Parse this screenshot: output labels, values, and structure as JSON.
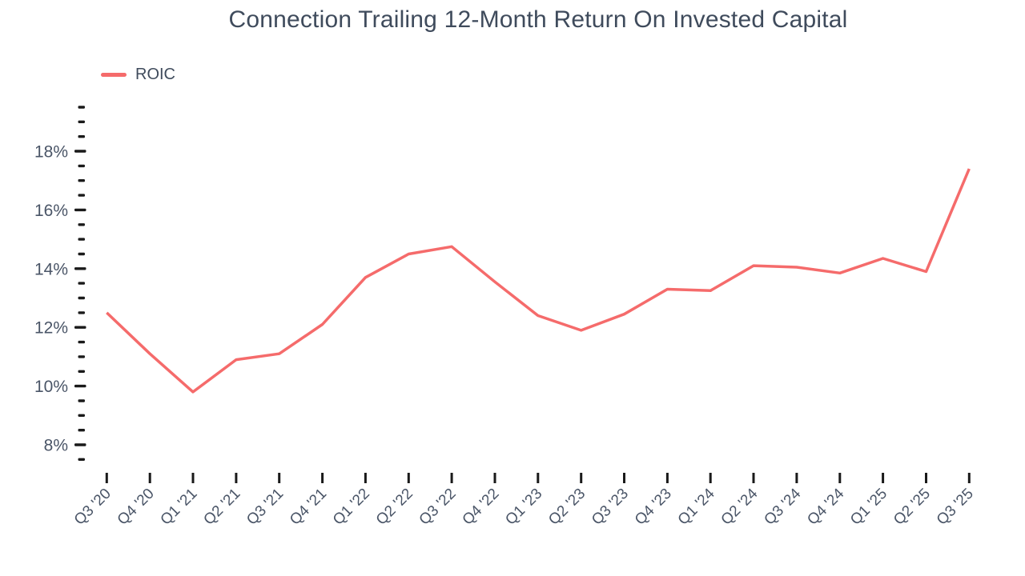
{
  "title": "Connection Trailing 12-Month Return On Invested Capital",
  "legend": {
    "items": [
      {
        "label": "ROIC",
        "color": "#F56B6B"
      }
    ]
  },
  "colors": {
    "line": "#F56B6B",
    "title_text": "#3F4B5C",
    "axis_label_text": "#4A5567",
    "tick": "#1A1A1A",
    "background": "#FFFFFF"
  },
  "chart_data": {
    "type": "line",
    "title": "Connection Trailing 12-Month Return On Invested Capital",
    "categories": [
      "Q3 '20",
      "Q4 '20",
      "Q1 '21",
      "Q2 '21",
      "Q3 '21",
      "Q4 '21",
      "Q1 '22",
      "Q2 '22",
      "Q3 '22",
      "Q4 '22",
      "Q1 '23",
      "Q2 '23",
      "Q3 '23",
      "Q4 '23",
      "Q1 '24",
      "Q2 '24",
      "Q3 '24",
      "Q4 '24",
      "Q1 '25",
      "Q2 '25",
      "Q3 '25"
    ],
    "series": [
      {
        "name": "ROIC",
        "color": "#F56B6B",
        "values": [
          12.5,
          11.1,
          9.8,
          10.9,
          11.1,
          12.1,
          13.7,
          14.5,
          14.75,
          13.55,
          12.4,
          11.9,
          12.45,
          13.3,
          13.25,
          14.1,
          14.05,
          13.85,
          14.35,
          13.9,
          17.4
        ]
      }
    ],
    "xlabel": "",
    "ylabel": "",
    "y_axis": {
      "tick_labels": [
        "8%",
        "10%",
        "12%",
        "14%",
        "16%",
        "18%"
      ],
      "major_ticks": [
        8,
        10,
        12,
        14,
        16,
        18
      ],
      "minor_tick_step": 0.5,
      "range_shown": [
        7.5,
        19.5
      ],
      "unit": "%"
    },
    "grid": false,
    "legend_position": "top-left"
  }
}
